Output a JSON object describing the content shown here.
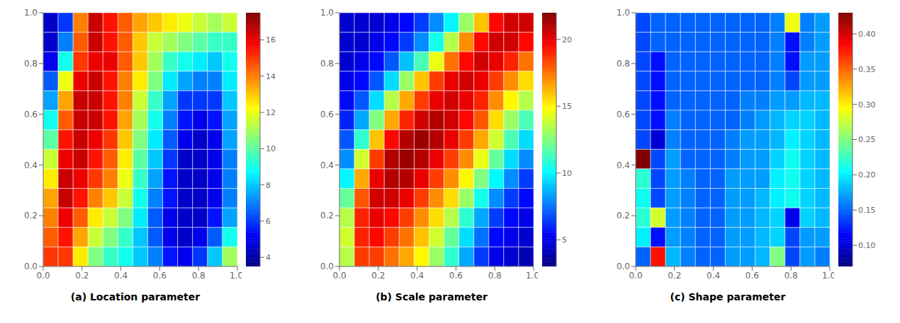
{
  "chart_data": [
    {
      "type": "heatmap",
      "title": "(a) Location parameter",
      "color": "jet",
      "grid": false,
      "xlim": [
        0,
        1
      ],
      "ylim": [
        0,
        1
      ],
      "xticks": [
        {
          "value": 0,
          "label": "0.0"
        },
        0.2,
        0.4,
        0.6,
        0.8,
        {
          "value": 1,
          "label": "1.0"
        }
      ],
      "yticks": [
        {
          "value": 0,
          "label": "0.0"
        },
        0.2,
        0.4,
        0.6,
        0.8,
        {
          "value": 1,
          "label": "1.0"
        }
      ],
      "colorbar_range": [
        3.5,
        17.5
      ],
      "colorbar_ticks": [
        4,
        6,
        8,
        10,
        12,
        14,
        16
      ],
      "cells": [
        [
          4.5,
          6.0,
          14.0,
          16.5,
          15.5,
          14.5,
          13.5,
          13.0,
          12.5,
          12.0,
          11.5,
          11.0,
          11.5
        ],
        [
          4.5,
          7.0,
          14.5,
          16.5,
          15.5,
          14.5,
          13.0,
          11.5,
          11.0,
          10.5,
          10.0,
          9.5,
          9.5
        ],
        [
          5.0,
          9.0,
          15.0,
          16.0,
          16.0,
          14.5,
          13.0,
          11.0,
          9.5,
          9.0,
          8.5,
          8.0,
          9.0
        ],
        [
          6.5,
          12.0,
          16.0,
          16.5,
          15.5,
          14.0,
          12.5,
          10.5,
          8.5,
          7.5,
          7.0,
          7.0,
          8.5
        ],
        [
          7.5,
          13.5,
          16.5,
          16.5,
          15.5,
          14.0,
          11.5,
          9.5,
          7.5,
          6.0,
          6.0,
          6.0,
          8.0
        ],
        [
          9.0,
          14.5,
          16.5,
          16.5,
          15.5,
          13.5,
          11.0,
          9.0,
          7.0,
          5.5,
          5.0,
          5.5,
          7.5
        ],
        [
          10.0,
          15.5,
          16.5,
          16.0,
          15.0,
          13.0,
          10.5,
          8.5,
          6.5,
          5.0,
          4.5,
          5.0,
          7.5
        ],
        [
          11.5,
          16.0,
          16.5,
          15.5,
          14.5,
          12.5,
          10.0,
          8.0,
          6.0,
          4.5,
          4.5,
          5.0,
          7.0
        ],
        [
          12.5,
          16.5,
          16.0,
          15.0,
          14.0,
          12.0,
          9.5,
          7.5,
          5.5,
          4.5,
          4.5,
          5.0,
          7.0
        ],
        [
          13.5,
          16.5,
          15.5,
          14.0,
          13.0,
          11.5,
          9.0,
          7.0,
          5.5,
          4.5,
          4.5,
          5.0,
          7.0
        ],
        [
          14.0,
          16.0,
          14.5,
          12.5,
          11.5,
          10.5,
          8.5,
          6.5,
          5.0,
          4.5,
          4.5,
          5.5,
          7.5
        ],
        [
          14.5,
          15.5,
          13.5,
          11.5,
          10.5,
          9.5,
          8.0,
          6.5,
          5.0,
          4.5,
          5.0,
          6.5,
          9.0
        ],
        [
          15.0,
          15.0,
          12.5,
          10.5,
          9.5,
          9.0,
          8.0,
          7.0,
          5.5,
          5.0,
          6.0,
          8.0,
          11.0
        ]
      ]
    },
    {
      "type": "heatmap",
      "title": "(b) Scale parameter",
      "color": "jet",
      "grid": false,
      "xlim": [
        0,
        1
      ],
      "ylim": [
        0,
        1
      ],
      "xticks": [
        {
          "value": 0,
          "label": "0.0"
        },
        0.2,
        0.4,
        0.6,
        0.8,
        {
          "value": 1,
          "label": "1.0"
        }
      ],
      "yticks": [
        {
          "value": 0,
          "label": "0.0"
        },
        0.2,
        0.4,
        0.6,
        0.8,
        {
          "value": 1,
          "label": "1.0"
        }
      ],
      "colorbar_range": [
        3.0,
        22.0
      ],
      "colorbar_ticks": [
        5,
        10,
        15,
        20
      ],
      "cells": [
        [
          4.5,
          4.5,
          4.5,
          5.0,
          5.5,
          6.5,
          8.0,
          10.0,
          13.0,
          16.0,
          19.5,
          20.5,
          20.5
        ],
        [
          4.5,
          4.5,
          5.0,
          5.5,
          6.5,
          8.0,
          10.5,
          13.5,
          17.0,
          19.5,
          20.5,
          20.5,
          19.5
        ],
        [
          4.5,
          5.0,
          5.5,
          7.0,
          9.0,
          11.5,
          14.5,
          17.5,
          19.5,
          20.5,
          20.0,
          19.0,
          17.5
        ],
        [
          5.0,
          5.5,
          7.0,
          9.5,
          13.0,
          16.0,
          18.5,
          20.0,
          20.5,
          20.0,
          18.5,
          17.0,
          15.5
        ],
        [
          5.5,
          7.0,
          9.5,
          13.5,
          16.5,
          18.5,
          20.0,
          20.5,
          20.0,
          19.0,
          17.0,
          15.0,
          13.5
        ],
        [
          6.0,
          8.5,
          12.5,
          16.5,
          19.0,
          20.5,
          21.0,
          20.5,
          19.5,
          18.0,
          15.5,
          13.0,
          11.5
        ],
        [
          7.0,
          11.0,
          16.0,
          19.5,
          21.0,
          21.5,
          21.0,
          20.0,
          18.5,
          16.5,
          14.0,
          11.5,
          9.5
        ],
        [
          8.0,
          14.0,
          18.5,
          21.0,
          21.5,
          21.0,
          20.0,
          18.5,
          17.0,
          14.5,
          12.0,
          9.5,
          8.0
        ],
        [
          10.0,
          16.5,
          20.0,
          21.0,
          21.0,
          20.0,
          18.5,
          17.0,
          15.0,
          12.5,
          10.0,
          8.0,
          6.5
        ],
        [
          12.0,
          18.0,
          20.5,
          20.5,
          20.0,
          18.5,
          17.0,
          15.5,
          13.0,
          10.5,
          8.0,
          6.5,
          5.5
        ],
        [
          13.5,
          19.0,
          20.0,
          19.5,
          18.5,
          17.0,
          15.5,
          13.5,
          11.0,
          8.5,
          6.5,
          5.5,
          5.0
        ],
        [
          14.0,
          19.0,
          19.5,
          18.5,
          17.5,
          16.0,
          14.0,
          12.0,
          9.5,
          7.5,
          5.5,
          5.0,
          4.5
        ],
        [
          13.5,
          18.5,
          18.5,
          17.5,
          16.5,
          15.0,
          13.0,
          11.0,
          8.5,
          6.5,
          5.0,
          4.5,
          4.0
        ]
      ]
    },
    {
      "type": "heatmap",
      "title": "(c) Shape parameter",
      "color": "jet",
      "grid": false,
      "xlim": [
        0,
        1
      ],
      "ylim": [
        0,
        1
      ],
      "xticks": [
        {
          "value": 0,
          "label": "0.0"
        },
        0.2,
        0.4,
        0.6,
        0.8,
        {
          "value": 1,
          "label": "1.0"
        }
      ],
      "yticks": [
        {
          "value": 0,
          "label": "0.0"
        },
        0.2,
        0.4,
        0.6,
        0.8,
        {
          "value": 1,
          "label": "1.0"
        }
      ],
      "colorbar_range": [
        0.07,
        0.43
      ],
      "colorbar_ticks": [
        {
          "value": 0.1,
          "label": "0.10"
        },
        0.15,
        {
          "value": 0.2,
          "label": "0.20"
        },
        0.25,
        {
          "value": 0.3,
          "label": "0.30"
        },
        0.35,
        {
          "value": 0.4,
          "label": "0.40"
        }
      ],
      "cells": [
        [
          0.14,
          0.15,
          0.15,
          0.15,
          0.15,
          0.15,
          0.15,
          0.15,
          0.15,
          0.16,
          0.29,
          0.16,
          0.17
        ],
        [
          0.14,
          0.15,
          0.15,
          0.15,
          0.15,
          0.15,
          0.15,
          0.15,
          0.15,
          0.16,
          0.12,
          0.16,
          0.17
        ],
        [
          0.14,
          0.12,
          0.15,
          0.15,
          0.15,
          0.15,
          0.15,
          0.15,
          0.15,
          0.16,
          0.12,
          0.17,
          0.17
        ],
        [
          0.14,
          0.12,
          0.15,
          0.15,
          0.15,
          0.15,
          0.15,
          0.15,
          0.15,
          0.16,
          0.14,
          0.17,
          0.17
        ],
        [
          0.14,
          0.12,
          0.15,
          0.15,
          0.15,
          0.15,
          0.15,
          0.16,
          0.16,
          0.17,
          0.17,
          0.18,
          0.18
        ],
        [
          0.14,
          0.12,
          0.16,
          0.15,
          0.15,
          0.15,
          0.15,
          0.16,
          0.17,
          0.18,
          0.19,
          0.19,
          0.18
        ],
        [
          0.14,
          0.1,
          0.16,
          0.15,
          0.15,
          0.15,
          0.16,
          0.17,
          0.17,
          0.18,
          0.2,
          0.19,
          0.18
        ],
        [
          0.43,
          0.14,
          0.17,
          0.15,
          0.15,
          0.15,
          0.16,
          0.17,
          0.17,
          0.19,
          0.21,
          0.19,
          0.18
        ],
        [
          0.22,
          0.14,
          0.17,
          0.16,
          0.15,
          0.15,
          0.17,
          0.17,
          0.17,
          0.2,
          0.21,
          0.19,
          0.18
        ],
        [
          0.21,
          0.14,
          0.17,
          0.16,
          0.15,
          0.15,
          0.17,
          0.17,
          0.18,
          0.2,
          0.21,
          0.19,
          0.18
        ],
        [
          0.22,
          0.28,
          0.17,
          0.16,
          0.15,
          0.15,
          0.17,
          0.17,
          0.18,
          0.19,
          0.11,
          0.19,
          0.18
        ],
        [
          0.2,
          0.12,
          0.17,
          0.16,
          0.15,
          0.15,
          0.17,
          0.17,
          0.18,
          0.19,
          0.14,
          0.17,
          0.17
        ],
        [
          0.15,
          0.38,
          0.18,
          0.16,
          0.15,
          0.15,
          0.17,
          0.17,
          0.18,
          0.25,
          0.14,
          0.17,
          0.16
        ]
      ]
    }
  ]
}
